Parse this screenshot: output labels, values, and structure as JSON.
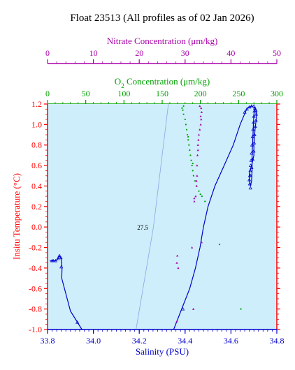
{
  "chart_data": {
    "type": "scatter",
    "title": "Float 23513  (All profiles as of 02 Jan 2026)",
    "xlabel": "Salinity (PSU)",
    "ylabel": "Insitu Temperature (°C)",
    "xlim": [
      33.8,
      34.8
    ],
    "ylim": [
      -1.0,
      1.2
    ],
    "x_ticks": [
      "33.8",
      "34.0",
      "34.2",
      "34.4",
      "34.6",
      "34.8"
    ],
    "y_ticks": [
      "-1.0",
      "-0.8",
      "-0.6",
      "-0.4",
      "-0.2",
      "0.0",
      "0.2",
      "0.4",
      "0.6",
      "0.8",
      "1.0",
      "1.2"
    ],
    "nitrate_axis": {
      "label": "Nitrate Concentration (μm/kg)",
      "range": [
        0,
        50
      ],
      "ticks": [
        "0",
        "10",
        "20",
        "30",
        "40",
        "50"
      ]
    },
    "oxygen_axis": {
      "label_prefix": "O",
      "label_sub": "2",
      "label_suffix": " Concentration (μm/kg)",
      "range": [
        0,
        300
      ],
      "ticks": [
        "0",
        "50",
        "100",
        "150",
        "200",
        "250",
        "300"
      ]
    },
    "density_contour": {
      "label": "27.5",
      "points": [
        [
          34.186,
          -1.0
        ],
        [
          34.262,
          0.0
        ],
        [
          34.327,
          1.2
        ]
      ]
    },
    "series": [
      {
        "kind": "salinity",
        "color": "#0000cc",
        "line": [
          [
            33.95,
            -1.0
          ],
          [
            33.9,
            -0.82
          ],
          [
            33.862,
            -0.5
          ],
          [
            33.863,
            -0.41
          ],
          [
            33.862,
            -0.35
          ],
          [
            33.858,
            -0.3
          ],
          [
            33.85,
            -0.28
          ],
          [
            33.845,
            -0.31
          ],
          [
            33.835,
            -0.33
          ],
          [
            33.82,
            -0.33
          ],
          [
            33.81,
            -0.33
          ]
        ],
        "line2": [
          [
            34.35,
            -1.0
          ],
          [
            34.385,
            -0.8
          ],
          [
            34.42,
            -0.6
          ],
          [
            34.445,
            -0.4
          ],
          [
            34.465,
            -0.2
          ],
          [
            34.48,
            0.0
          ],
          [
            34.5,
            0.2
          ],
          [
            34.53,
            0.4
          ],
          [
            34.57,
            0.6
          ],
          [
            34.61,
            0.8
          ],
          [
            34.64,
            1.0
          ],
          [
            34.67,
            1.16
          ],
          [
            34.69,
            1.18
          ],
          [
            34.705,
            1.16
          ],
          [
            34.712,
            1.12
          ],
          [
            34.71,
            1.05
          ],
          [
            34.705,
            0.95
          ],
          [
            34.7,
            0.8
          ],
          [
            34.7,
            0.7
          ],
          [
            34.69,
            0.6
          ],
          [
            34.68,
            0.52
          ],
          [
            34.68,
            0.45
          ],
          [
            34.685,
            0.4
          ],
          [
            34.69,
            0.45
          ],
          [
            34.692,
            0.55
          ],
          [
            34.692,
            0.7
          ],
          [
            34.695,
            0.85
          ],
          [
            34.698,
            1.0
          ],
          [
            34.7,
            1.1
          ],
          [
            34.705,
            1.16
          ]
        ],
        "points": [
          [
            33.82,
            -0.33
          ],
          [
            33.825,
            -0.33
          ],
          [
            33.835,
            -0.33
          ],
          [
            33.845,
            -0.31
          ],
          [
            33.852,
            -0.28
          ],
          [
            33.858,
            -0.3
          ],
          [
            33.86,
            -0.39
          ],
          [
            33.93,
            -0.93
          ],
          [
            34.39,
            -0.8
          ],
          [
            34.68,
            0.46
          ],
          [
            34.682,
            0.5
          ],
          [
            34.684,
            0.55
          ],
          [
            34.686,
            0.6
          ],
          [
            34.688,
            0.65
          ],
          [
            34.69,
            0.72
          ],
          [
            34.692,
            0.8
          ],
          [
            34.694,
            0.88
          ],
          [
            34.696,
            0.95
          ],
          [
            34.698,
            1.02
          ],
          [
            34.7,
            1.08
          ],
          [
            34.702,
            1.13
          ],
          [
            34.704,
            1.16
          ],
          [
            34.7,
            1.18
          ],
          [
            34.69,
            1.18
          ],
          [
            34.68,
            1.17
          ],
          [
            34.67,
            1.15
          ],
          [
            34.66,
            1.12
          ],
          [
            34.708,
            1.14
          ],
          [
            34.71,
            1.1
          ],
          [
            34.709,
            1.04
          ],
          [
            34.706,
            0.98
          ],
          [
            34.703,
            0.9
          ],
          [
            34.701,
            0.82
          ],
          [
            34.699,
            0.74
          ],
          [
            34.695,
            0.66
          ],
          [
            34.69,
            0.58
          ],
          [
            34.686,
            0.5
          ],
          [
            34.682,
            0.42
          ],
          [
            34.685,
            0.38
          ]
        ]
      },
      {
        "kind": "oxygen",
        "color": "#00a000",
        "points": [
          [
            178,
            1.18
          ],
          [
            177,
            1.14
          ],
          [
            178,
            1.1
          ],
          [
            180,
            1.05
          ],
          [
            181,
            1.0
          ],
          [
            182,
            0.95
          ],
          [
            183,
            0.9
          ],
          [
            184,
            0.85
          ],
          [
            185,
            0.8
          ],
          [
            186,
            0.75
          ],
          [
            187,
            0.7
          ],
          [
            188,
            0.65
          ],
          [
            189,
            0.6
          ],
          [
            190,
            0.55
          ],
          [
            191,
            0.5
          ],
          [
            193,
            0.45
          ],
          [
            195,
            0.4
          ],
          [
            198,
            0.35
          ],
          [
            202,
            0.3
          ],
          [
            206,
            0.25
          ],
          [
            176,
            1.16
          ],
          [
            184,
            0.88
          ],
          [
            190,
            0.62
          ],
          [
            200,
            0.32
          ],
          [
            225,
            -0.17
          ],
          [
            253,
            -0.8
          ]
        ]
      },
      {
        "kind": "nitrate",
        "color": "#aa00aa",
        "points": [
          [
            33.2,
            1.18
          ],
          [
            33.5,
            1.16
          ],
          [
            33.6,
            1.12
          ],
          [
            33.5,
            1.05
          ],
          [
            33.4,
            1.0
          ],
          [
            33.2,
            0.95
          ],
          [
            33.0,
            0.9
          ],
          [
            32.9,
            0.85
          ],
          [
            32.8,
            0.8
          ],
          [
            32.7,
            0.7
          ],
          [
            32.6,
            0.6
          ],
          [
            32.6,
            0.5
          ],
          [
            32.5,
            0.4
          ],
          [
            32.3,
            0.3
          ],
          [
            32.0,
            0.25
          ],
          [
            33.4,
            1.08
          ],
          [
            32.8,
            0.75
          ],
          [
            32.5,
            0.45
          ],
          [
            28.3,
            -0.28
          ],
          [
            28.2,
            -0.35
          ],
          [
            28.5,
            -0.4
          ],
          [
            33.6,
            -0.15
          ],
          [
            31.5,
            -0.2
          ],
          [
            31.8,
            -0.8
          ],
          [
            28.2,
            -0.92
          ],
          [
            32.0,
            0.28
          ]
        ]
      }
    ]
  }
}
